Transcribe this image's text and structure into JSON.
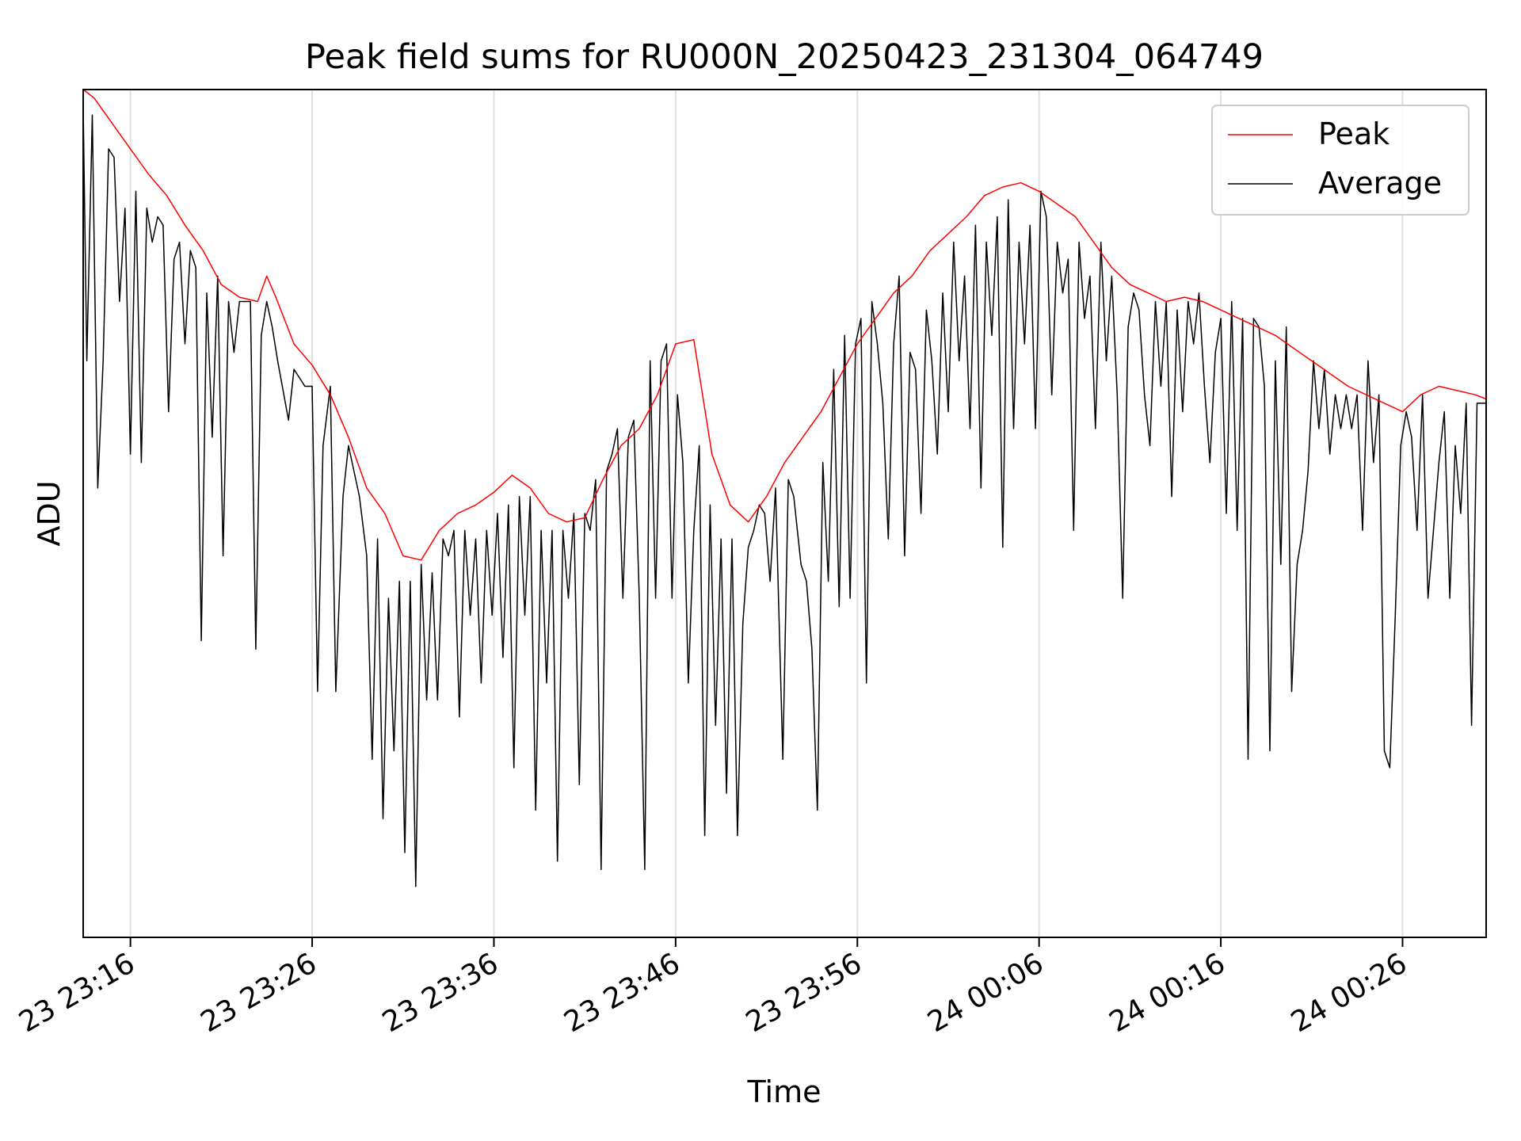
{
  "chart_data": {
    "type": "line",
    "title": "Peak field sums for RU000N_20250423_231304_064749",
    "xlabel": "Time",
    "ylabel": "ADU",
    "x_tick_labels": [
      "23 23:16",
      "23 23:26",
      "23 23:36",
      "23 23:46",
      "23 23:56",
      "24 00:06",
      "24 00:16",
      "24 00:26"
    ],
    "x_tick_minutes": [
      3,
      13,
      23,
      33,
      43,
      53,
      63,
      73
    ],
    "xlim_minutes": [
      0.4,
      77.6
    ],
    "ylim": [
      0,
      100
    ],
    "y_ticks_shown": false,
    "grid": "vertical",
    "legend_position": "top-right",
    "colors": {
      "peak": "#ff0000",
      "average": "#000000",
      "grid": "#e0e0e0"
    },
    "series": [
      {
        "name": "Peak",
        "color": "#ff0000",
        "points": [
          [
            0.4,
            100
          ],
          [
            1,
            99
          ],
          [
            2,
            96
          ],
          [
            3,
            93
          ],
          [
            4,
            90
          ],
          [
            5,
            87.5
          ],
          [
            6,
            84
          ],
          [
            7,
            81
          ],
          [
            8,
            77
          ],
          [
            9,
            75.5
          ],
          [
            10,
            75
          ],
          [
            10.5,
            78
          ],
          [
            11,
            75.5
          ],
          [
            12,
            70
          ],
          [
            13,
            67.5
          ],
          [
            14,
            64
          ],
          [
            15,
            59
          ],
          [
            16,
            53
          ],
          [
            17,
            50
          ],
          [
            18,
            45
          ],
          [
            19,
            44.5
          ],
          [
            20,
            48
          ],
          [
            21,
            50
          ],
          [
            22,
            51
          ],
          [
            23,
            52.5
          ],
          [
            24,
            54.5
          ],
          [
            25,
            53
          ],
          [
            26,
            50
          ],
          [
            27,
            49
          ],
          [
            28,
            49.5
          ],
          [
            29,
            54
          ],
          [
            30,
            58
          ],
          [
            31,
            60
          ],
          [
            32,
            64
          ],
          [
            33,
            70
          ],
          [
            34,
            70.5
          ],
          [
            35,
            57
          ],
          [
            36,
            51
          ],
          [
            37,
            49
          ],
          [
            38,
            52
          ],
          [
            39,
            56
          ],
          [
            40,
            59
          ],
          [
            41,
            62
          ],
          [
            42,
            66
          ],
          [
            43,
            70
          ],
          [
            44,
            73
          ],
          [
            45,
            76
          ],
          [
            46,
            78
          ],
          [
            47,
            81
          ],
          [
            48,
            83
          ],
          [
            49,
            85
          ],
          [
            50,
            87.5
          ],
          [
            51,
            88.5
          ],
          [
            52,
            89
          ],
          [
            53,
            88
          ],
          [
            54,
            86.5
          ],
          [
            55,
            85
          ],
          [
            56,
            82
          ],
          [
            57,
            79
          ],
          [
            58,
            77
          ],
          [
            59,
            76
          ],
          [
            60,
            75
          ],
          [
            61,
            75.5
          ],
          [
            62,
            75
          ],
          [
            63,
            74
          ],
          [
            64,
            73
          ],
          [
            65,
            72
          ],
          [
            66,
            71
          ],
          [
            67,
            69.5
          ],
          [
            68,
            68
          ],
          [
            69,
            66.5
          ],
          [
            70,
            65
          ],
          [
            71,
            64
          ],
          [
            72,
            63
          ],
          [
            73,
            62
          ],
          [
            74,
            64
          ],
          [
            75,
            65
          ],
          [
            76,
            64.5
          ],
          [
            77,
            64
          ],
          [
            77.6,
            63.5
          ]
        ]
      },
      {
        "name": "Average",
        "color": "#000000",
        "points": [
          [
            0.4,
            98
          ],
          [
            0.6,
            68
          ],
          [
            0.9,
            97
          ],
          [
            1.2,
            53
          ],
          [
            1.5,
            68
          ],
          [
            1.8,
            93
          ],
          [
            2.1,
            92
          ],
          [
            2.4,
            75
          ],
          [
            2.7,
            86
          ],
          [
            3,
            57
          ],
          [
            3.3,
            88
          ],
          [
            3.6,
            56
          ],
          [
            3.9,
            86
          ],
          [
            4.2,
            82
          ],
          [
            4.5,
            85
          ],
          [
            4.8,
            84
          ],
          [
            5.1,
            62
          ],
          [
            5.4,
            80
          ],
          [
            5.7,
            82
          ],
          [
            6,
            70
          ],
          [
            6.3,
            81
          ],
          [
            6.6,
            79
          ],
          [
            6.9,
            35
          ],
          [
            7.2,
            76
          ],
          [
            7.5,
            59
          ],
          [
            7.8,
            78
          ],
          [
            8.1,
            45
          ],
          [
            8.4,
            75
          ],
          [
            8.7,
            69
          ],
          [
            9,
            75
          ],
          [
            9.6,
            75
          ],
          [
            9.9,
            34
          ],
          [
            10.2,
            71
          ],
          [
            10.5,
            75
          ],
          [
            10.8,
            72
          ],
          [
            11.1,
            68
          ],
          [
            11.7,
            61
          ],
          [
            12,
            67
          ],
          [
            12.6,
            65
          ],
          [
            13,
            65
          ],
          [
            13.3,
            29
          ],
          [
            13.6,
            58
          ],
          [
            14,
            65
          ],
          [
            14.3,
            29
          ],
          [
            14.7,
            52
          ],
          [
            15,
            58
          ],
          [
            15.6,
            52
          ],
          [
            16,
            45
          ],
          [
            16.3,
            21
          ],
          [
            16.6,
            47
          ],
          [
            16.9,
            14
          ],
          [
            17.2,
            40
          ],
          [
            17.5,
            22
          ],
          [
            17.8,
            42
          ],
          [
            18.1,
            10
          ],
          [
            18.4,
            42
          ],
          [
            18.7,
            6
          ],
          [
            19,
            44
          ],
          [
            19.3,
            28
          ],
          [
            19.6,
            43
          ],
          [
            19.9,
            28
          ],
          [
            20.2,
            47
          ],
          [
            20.5,
            45
          ],
          [
            20.8,
            48
          ],
          [
            21.1,
            26
          ],
          [
            21.4,
            48
          ],
          [
            21.7,
            38
          ],
          [
            22,
            47
          ],
          [
            22.3,
            30
          ],
          [
            22.6,
            48
          ],
          [
            22.9,
            38
          ],
          [
            23.2,
            50
          ],
          [
            23.5,
            33
          ],
          [
            23.8,
            51
          ],
          [
            24.1,
            20
          ],
          [
            24.4,
            52
          ],
          [
            24.7,
            38
          ],
          [
            25,
            52
          ],
          [
            25.3,
            15
          ],
          [
            25.6,
            48
          ],
          [
            25.9,
            30
          ],
          [
            26.2,
            48
          ],
          [
            26.5,
            9
          ],
          [
            26.8,
            48
          ],
          [
            27.1,
            40
          ],
          [
            27.4,
            50
          ],
          [
            27.7,
            18
          ],
          [
            28,
            50
          ],
          [
            28.3,
            48
          ],
          [
            28.6,
            54
          ],
          [
            28.9,
            8
          ],
          [
            29.2,
            55
          ],
          [
            29.5,
            57
          ],
          [
            29.8,
            60
          ],
          [
            30.1,
            40
          ],
          [
            30.4,
            59
          ],
          [
            30.7,
            61
          ],
          [
            31,
            40
          ],
          [
            31.3,
            8
          ],
          [
            31.6,
            68
          ],
          [
            31.9,
            40
          ],
          [
            32.2,
            68
          ],
          [
            32.5,
            70
          ],
          [
            32.8,
            40
          ],
          [
            33.1,
            64
          ],
          [
            33.4,
            56
          ],
          [
            33.7,
            30
          ],
          [
            34,
            48
          ],
          [
            34.3,
            58
          ],
          [
            34.6,
            12
          ],
          [
            34.9,
            51
          ],
          [
            35.2,
            25
          ],
          [
            35.5,
            47
          ],
          [
            35.8,
            17
          ],
          [
            36.1,
            47
          ],
          [
            36.4,
            12
          ],
          [
            36.7,
            37
          ],
          [
            37,
            46
          ],
          [
            37.3,
            48
          ],
          [
            37.6,
            51
          ],
          [
            37.9,
            50
          ],
          [
            38.2,
            42
          ],
          [
            38.5,
            53
          ],
          [
            38.9,
            21
          ],
          [
            39.2,
            54
          ],
          [
            39.5,
            52
          ],
          [
            39.9,
            44
          ],
          [
            40.2,
            42
          ],
          [
            40.5,
            34
          ],
          [
            40.8,
            15
          ],
          [
            41.1,
            56
          ],
          [
            41.4,
            42
          ],
          [
            41.7,
            67
          ],
          [
            42,
            39
          ],
          [
            42.3,
            71
          ],
          [
            42.6,
            40
          ],
          [
            42.9,
            70
          ],
          [
            43.2,
            73
          ],
          [
            43.5,
            30
          ],
          [
            43.8,
            75
          ],
          [
            44.1,
            70
          ],
          [
            44.4,
            63
          ],
          [
            44.7,
            47
          ],
          [
            45,
            70
          ],
          [
            45.3,
            78
          ],
          [
            45.6,
            45
          ],
          [
            45.9,
            69
          ],
          [
            46.2,
            67
          ],
          [
            46.5,
            50
          ],
          [
            46.8,
            74
          ],
          [
            47.1,
            68
          ],
          [
            47.4,
            57
          ],
          [
            47.7,
            76
          ],
          [
            48,
            62
          ],
          [
            48.3,
            82
          ],
          [
            48.6,
            68
          ],
          [
            48.9,
            78
          ],
          [
            49.2,
            60
          ],
          [
            49.5,
            84
          ],
          [
            49.8,
            53
          ],
          [
            50.1,
            82
          ],
          [
            50.4,
            71
          ],
          [
            50.7,
            85
          ],
          [
            51,
            46
          ],
          [
            51.3,
            87
          ],
          [
            51.6,
            60
          ],
          [
            51.9,
            82
          ],
          [
            52.2,
            70
          ],
          [
            52.5,
            84
          ],
          [
            52.8,
            60
          ],
          [
            53.1,
            88
          ],
          [
            53.4,
            85
          ],
          [
            53.7,
            64
          ],
          [
            54,
            82
          ],
          [
            54.3,
            76
          ],
          [
            54.6,
            80
          ],
          [
            54.9,
            48
          ],
          [
            55.2,
            82
          ],
          [
            55.5,
            73
          ],
          [
            55.8,
            78
          ],
          [
            56.1,
            60
          ],
          [
            56.4,
            82
          ],
          [
            56.7,
            68
          ],
          [
            57,
            78
          ],
          [
            57.3,
            64
          ],
          [
            57.6,
            40
          ],
          [
            57.9,
            72
          ],
          [
            58.2,
            76
          ],
          [
            58.5,
            74
          ],
          [
            58.8,
            64
          ],
          [
            59.1,
            58
          ],
          [
            59.4,
            75
          ],
          [
            59.7,
            65
          ],
          [
            60,
            75
          ],
          [
            60.3,
            52
          ],
          [
            60.6,
            74
          ],
          [
            60.9,
            62
          ],
          [
            61.2,
            75
          ],
          [
            61.5,
            70
          ],
          [
            61.8,
            76
          ],
          [
            62.1,
            65
          ],
          [
            62.4,
            56
          ],
          [
            62.7,
            69
          ],
          [
            63,
            73
          ],
          [
            63.3,
            50
          ],
          [
            63.6,
            75
          ],
          [
            63.9,
            48
          ],
          [
            64.2,
            73
          ],
          [
            64.5,
            21
          ],
          [
            64.8,
            73
          ],
          [
            65.1,
            72
          ],
          [
            65.4,
            65
          ],
          [
            65.7,
            22
          ],
          [
            66,
            68
          ],
          [
            66.3,
            44
          ],
          [
            66.6,
            72
          ],
          [
            66.9,
            29
          ],
          [
            67.2,
            44
          ],
          [
            67.5,
            48
          ],
          [
            67.8,
            55
          ],
          [
            68.1,
            68
          ],
          [
            68.4,
            60
          ],
          [
            68.7,
            67
          ],
          [
            69,
            57
          ],
          [
            69.3,
            64
          ],
          [
            69.6,
            60
          ],
          [
            69.9,
            64
          ],
          [
            70.2,
            60
          ],
          [
            70.5,
            64
          ],
          [
            70.8,
            48
          ],
          [
            71.1,
            68
          ],
          [
            71.4,
            56
          ],
          [
            71.7,
            64
          ],
          [
            72,
            22
          ],
          [
            72.3,
            20
          ],
          [
            72.6,
            38
          ],
          [
            72.9,
            58
          ],
          [
            73.2,
            62
          ],
          [
            73.5,
            59
          ],
          [
            73.8,
            48
          ],
          [
            74.1,
            64
          ],
          [
            74.4,
            40
          ],
          [
            74.7,
            48
          ],
          [
            75,
            56
          ],
          [
            75.3,
            62
          ],
          [
            75.6,
            40
          ],
          [
            75.9,
            58
          ],
          [
            76.2,
            50
          ],
          [
            76.5,
            63
          ],
          [
            76.8,
            25
          ],
          [
            77.1,
            63
          ],
          [
            77.6,
            63
          ]
        ]
      }
    ]
  }
}
